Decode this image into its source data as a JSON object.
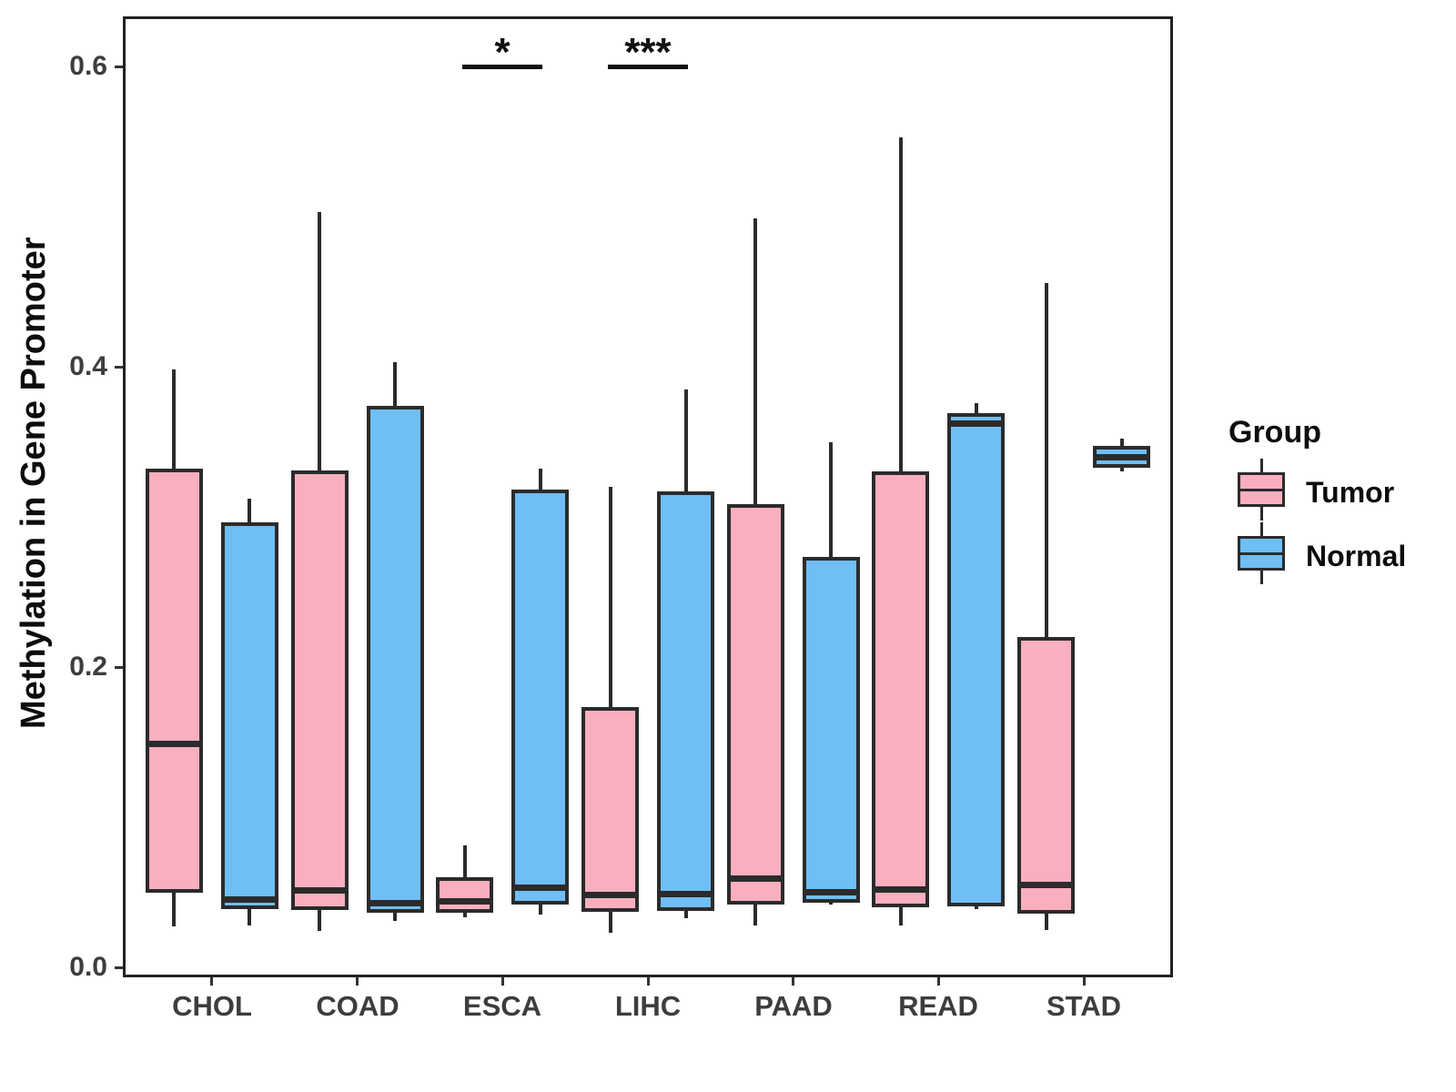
{
  "chart_data": {
    "type": "boxplot",
    "title": "",
    "xlabel": "",
    "ylabel": "Methylation in Gene Promoter",
    "categories": [
      "CHOL",
      "COAD",
      "ESCA",
      "LIHC",
      "PAAD",
      "READ",
      "STAD"
    ],
    "y_ticks": [
      {
        "label": "0.0",
        "value": 0.0
      },
      {
        "label": "0.2",
        "value": 0.2
      },
      {
        "label": "0.4",
        "value": 0.4
      },
      {
        "label": "0.6",
        "value": 0.6
      }
    ],
    "ylim": [
      -0.005,
      0.632
    ],
    "grid": false,
    "legend_position": "right",
    "legend": {
      "title": "Group",
      "entries": [
        {
          "label": "Tumor",
          "color": "#F9AFBE"
        },
        {
          "label": "Normal",
          "color": "#6FBEF5"
        }
      ]
    },
    "series": [
      {
        "name": "Tumor",
        "color": "#F9AFBE",
        "boxes": [
          {
            "category": "CHOL",
            "whisker_low": 0.027,
            "q1": 0.051,
            "median": 0.149,
            "q3": 0.331,
            "whisker_high": 0.398
          },
          {
            "category": "COAD",
            "whisker_low": 0.024,
            "q1": 0.04,
            "median": 0.051,
            "q3": 0.33,
            "whisker_high": 0.503
          },
          {
            "category": "ESCA",
            "whisker_low": 0.033,
            "q1": 0.038,
            "median": 0.044,
            "q3": 0.059,
            "whisker_high": 0.081
          },
          {
            "category": "LIHC",
            "whisker_low": 0.023,
            "q1": 0.038,
            "median": 0.048,
            "q3": 0.172,
            "whisker_high": 0.32
          },
          {
            "category": "PAAD",
            "whisker_low": 0.028,
            "q1": 0.043,
            "median": 0.059,
            "q3": 0.307,
            "whisker_high": 0.499
          },
          {
            "category": "READ",
            "whisker_low": 0.028,
            "q1": 0.041,
            "median": 0.052,
            "q3": 0.329,
            "whisker_high": 0.553
          },
          {
            "category": "STAD",
            "whisker_low": 0.025,
            "q1": 0.037,
            "median": 0.055,
            "q3": 0.219,
            "whisker_high": 0.456
          }
        ]
      },
      {
        "name": "Normal",
        "color": "#6FBEF5",
        "boxes": [
          {
            "category": "CHOL",
            "whisker_low": 0.028,
            "q1": 0.04,
            "median": 0.045,
            "q3": 0.295,
            "whisker_high": 0.312
          },
          {
            "category": "COAD",
            "whisker_low": 0.031,
            "q1": 0.038,
            "median": 0.043,
            "q3": 0.373,
            "whisker_high": 0.403
          },
          {
            "category": "ESCA",
            "whisker_low": 0.035,
            "q1": 0.043,
            "median": 0.053,
            "q3": 0.317,
            "whisker_high": 0.332
          },
          {
            "category": "LIHC",
            "whisker_low": 0.033,
            "q1": 0.039,
            "median": 0.049,
            "q3": 0.316,
            "whisker_high": 0.385
          },
          {
            "category": "PAAD",
            "whisker_low": 0.042,
            "q1": 0.044,
            "median": 0.05,
            "q3": 0.272,
            "whisker_high": 0.35
          },
          {
            "category": "READ",
            "whisker_low": 0.039,
            "q1": 0.042,
            "median": 0.362,
            "q3": 0.368,
            "whisker_high": 0.376
          },
          {
            "category": "STAD",
            "whisker_low": 0.33,
            "q1": 0.334,
            "median": 0.34,
            "q3": 0.346,
            "whisker_high": 0.352
          }
        ]
      }
    ],
    "significance": [
      {
        "category": "ESCA",
        "label": "*",
        "y": 0.6
      },
      {
        "category": "LIHC",
        "label": "***",
        "y": 0.6
      }
    ]
  }
}
